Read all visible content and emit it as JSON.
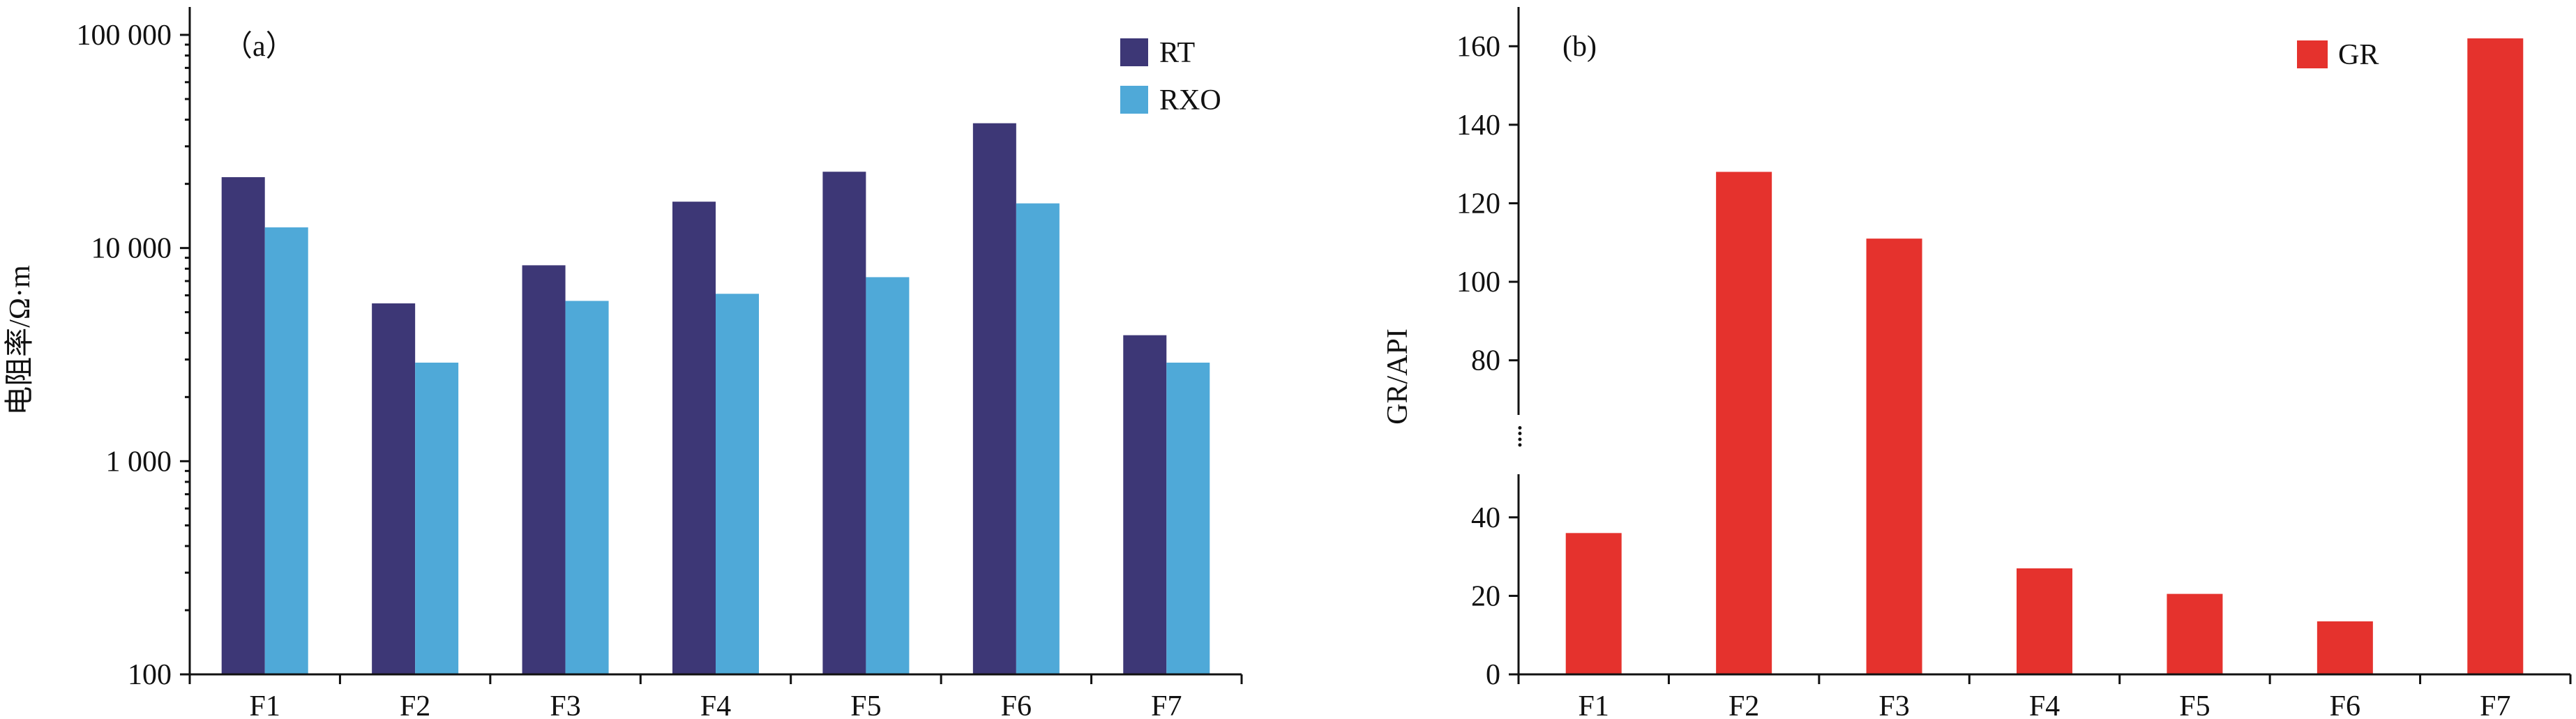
{
  "chart_data": [
    {
      "id": "a",
      "type": "bar",
      "panel_label": "（a）",
      "ylabel": "电阻率/Ω·m",
      "yscale": "log",
      "ylim": [
        100,
        100000
      ],
      "yticks": [
        100,
        1000,
        10000,
        100000
      ],
      "yticklabels": [
        "100",
        "1 000",
        "10 000",
        "100 000"
      ],
      "categories": [
        "F1",
        "F2",
        "F3",
        "F4",
        "F5",
        "F6",
        "F7"
      ],
      "series": [
        {
          "name": "RT",
          "color": "#3d3776",
          "values": [
            21500,
            5500,
            8300,
            16500,
            22800,
            38500,
            3900
          ]
        },
        {
          "name": "RXO",
          "color": "#4fa9d8",
          "values": [
            12500,
            2900,
            5650,
            6100,
            7300,
            16200,
            2900
          ]
        }
      ],
      "legend_position": "top-right",
      "grid": false
    },
    {
      "id": "b",
      "type": "bar",
      "panel_label": "(b)",
      "ylabel": "GR/API",
      "ylim": [
        0,
        170
      ],
      "axis_break": [
        40,
        80
      ],
      "yticks": [
        0,
        20,
        40,
        80,
        100,
        120,
        140,
        160
      ],
      "categories": [
        "F1",
        "F2",
        "F3",
        "F4",
        "F5",
        "F6",
        "F7"
      ],
      "series": [
        {
          "name": "GR",
          "color": "#e5322d",
          "values": [
            36,
            128,
            111,
            27,
            20.5,
            13.5,
            162
          ]
        }
      ],
      "legend_position": "top-right",
      "grid": false
    }
  ]
}
